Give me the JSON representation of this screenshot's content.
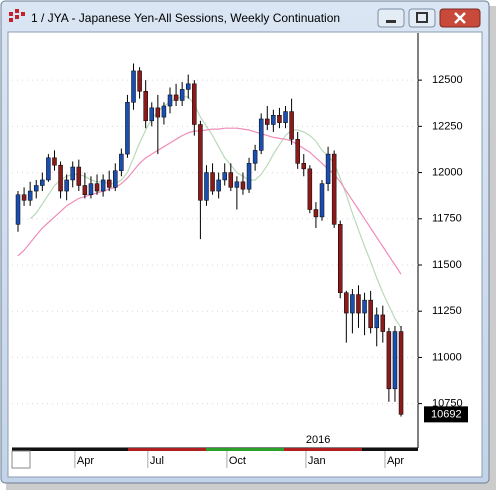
{
  "chart_data": {
    "type": "candlestick",
    "title": "1 / JYA - Japanese Yen-All Sessions, Weekly Continuation",
    "categories": [
      null,
      null,
      null,
      null,
      null,
      null,
      null,
      null,
      null,
      null,
      null,
      "Apr",
      null,
      null,
      null,
      null,
      null,
      null,
      null,
      null,
      null,
      null,
      null,
      "Jul",
      null,
      null,
      null,
      null,
      null,
      null,
      null,
      null,
      null,
      null,
      null,
      null,
      "Oct",
      null,
      null,
      null,
      null,
      null,
      null,
      null,
      null,
      null,
      null,
      null,
      null,
      "Jan",
      null,
      null,
      null,
      null,
      null,
      null,
      null,
      null,
      null,
      null,
      null,
      null,
      "Apr",
      null
    ],
    "open": [
      11720,
      11880,
      11850,
      11900,
      11930,
      11960,
      12080,
      12040,
      11900,
      11960,
      12030,
      11930,
      11880,
      11940,
      11900,
      11960,
      11920,
      12010,
      12100,
      12380,
      12550,
      12440,
      12280,
      12350,
      12300,
      12360,
      12420,
      12390,
      12450,
      12480,
      12260,
      11850,
      12000,
      11900,
      11960,
      12000,
      11920,
      11950,
      11910,
      12050,
      12120,
      12290,
      12260,
      12310,
      12270,
      12330,
      12180,
      12050,
      12020,
      11800,
      11760,
      11940,
      12100,
      11720,
      11350,
      11240,
      11340,
      11240,
      11310,
      11160,
      11230,
      11140,
      10830,
      11140
    ],
    "high": [
      11900,
      11920,
      11950,
      11960,
      12000,
      12100,
      12120,
      12060,
      11990,
      12060,
      12070,
      12000,
      11980,
      11990,
      11990,
      12010,
      12050,
      12130,
      12420,
      12590,
      12570,
      12500,
      12380,
      12420,
      12380,
      12460,
      12480,
      12490,
      12530,
      12500,
      12280,
      12040,
      12050,
      12000,
      12050,
      12050,
      11980,
      12000,
      12080,
      12150,
      12320,
      12360,
      12340,
      12350,
      12360,
      12400,
      12220,
      12100,
      12040,
      11840,
      11960,
      12140,
      12120,
      11740,
      11360,
      11370,
      11390,
      11350,
      11360,
      11270,
      11280,
      11160,
      11170,
      11170
    ],
    "low": [
      11680,
      11820,
      11820,
      11860,
      11900,
      11950,
      12010,
      11860,
      11850,
      11920,
      11900,
      11860,
      11860,
      11880,
      11870,
      11900,
      11900,
      11980,
      12080,
      12340,
      12400,
      12240,
      12250,
      12100,
      12260,
      12320,
      12360,
      12360,
      12400,
      12200,
      11640,
      11820,
      11880,
      11860,
      11930,
      11900,
      11800,
      11880,
      11890,
      12010,
      12100,
      12230,
      12220,
      12240,
      12240,
      12150,
      12020,
      11980,
      11780,
      11700,
      11740,
      11900,
      11700,
      11320,
      11080,
      11130,
      11160,
      11120,
      11130,
      11060,
      11080,
      10760,
      10760,
      10680
    ],
    "close": [
      11880,
      11850,
      11900,
      11930,
      11960,
      12080,
      12040,
      11900,
      11960,
      12030,
      11930,
      11880,
      11940,
      11900,
      11960,
      11920,
      12010,
      12100,
      12380,
      12550,
      12440,
      12280,
      12350,
      12300,
      12360,
      12420,
      12390,
      12450,
      12480,
      12260,
      11850,
      12000,
      11900,
      11960,
      12000,
      11920,
      11950,
      11910,
      12050,
      12120,
      12290,
      12260,
      12310,
      12270,
      12330,
      12180,
      12050,
      12020,
      11800,
      11760,
      11940,
      12100,
      11720,
      11350,
      11240,
      11340,
      11240,
      11310,
      11160,
      11230,
      11140,
      10830,
      11140,
      10692
    ],
    "up_color": "#1a4fb0",
    "down_color": "#8b1a1a",
    "lines": [
      {
        "color": "#b9d9b9",
        "values": [
          null,
          null,
          11750,
          11780,
          11830,
          11880,
          11930,
          11960,
          11980,
          11990,
          11990,
          11980,
          11960,
          11950,
          11950,
          11940,
          11940,
          11960,
          12000,
          12080,
          12160,
          12230,
          12290,
          12330,
          12360,
          12380,
          12400,
          12410,
          12410,
          12370,
          12300,
          12250,
          12200,
          12140,
          12080,
          12040,
          12000,
          11980,
          11960,
          11960,
          11990,
          12040,
          12100,
          12150,
          12200,
          12230,
          12230,
          12220,
          12200,
          12170,
          12120,
          12090,
          12050,
          11970,
          11880,
          11780,
          11690,
          11600,
          11520,
          11430,
          11350,
          11280,
          11210,
          11160
        ]
      },
      {
        "color": "#f08cb8",
        "values": [
          11550,
          11580,
          11620,
          11660,
          11700,
          11730,
          11760,
          11790,
          11820,
          11840,
          11860,
          11870,
          11880,
          11890,
          11900,
          11910,
          11920,
          11940,
          11970,
          12010,
          12050,
          12080,
          12100,
          12120,
          12140,
          12160,
          12180,
          12200,
          12215,
          12225,
          12225,
          12230,
          12235,
          12235,
          12240,
          12240,
          12240,
          12235,
          12230,
          12220,
          12210,
          12200,
          12190,
          12185,
          12180,
          12170,
          12150,
          12130,
          12110,
          12080,
          12050,
          12020,
          11990,
          11950,
          11900,
          11850,
          11800,
          11750,
          11700,
          11650,
          11600,
          11550,
          11500,
          11450
        ]
      }
    ],
    "ylim": [
      10510,
      12755
    ],
    "yticks": [
      10750,
      11000,
      11250,
      11500,
      11750,
      12000,
      12250,
      12500
    ],
    "grid": true,
    "year_label": "2016"
  }
}
